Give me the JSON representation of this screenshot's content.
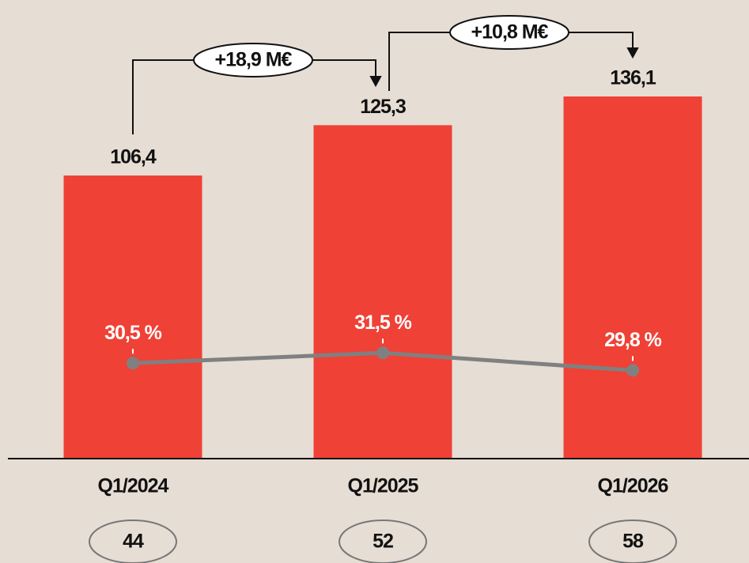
{
  "chart_data": {
    "type": "bar",
    "categories": [
      "Q1/2024",
      "Q1/2025",
      "Q1/2026"
    ],
    "values": [
      106.4,
      125.3,
      136.1
    ],
    "value_labels": [
      "106,4",
      "125,3",
      "136,1"
    ],
    "color": "#ef4136",
    "series": [
      {
        "type": "line",
        "axis": "y2",
        "color": "#808080",
        "values": [
          30.5,
          31.5,
          29.8
        ],
        "value_labels": [
          "30,5 %",
          "31,5 %",
          "29,8 %"
        ]
      }
    ],
    "annotations": [
      "+18,9 M€",
      "+10,8 M€"
    ],
    "footer_values": [
      44,
      52,
      58
    ]
  }
}
